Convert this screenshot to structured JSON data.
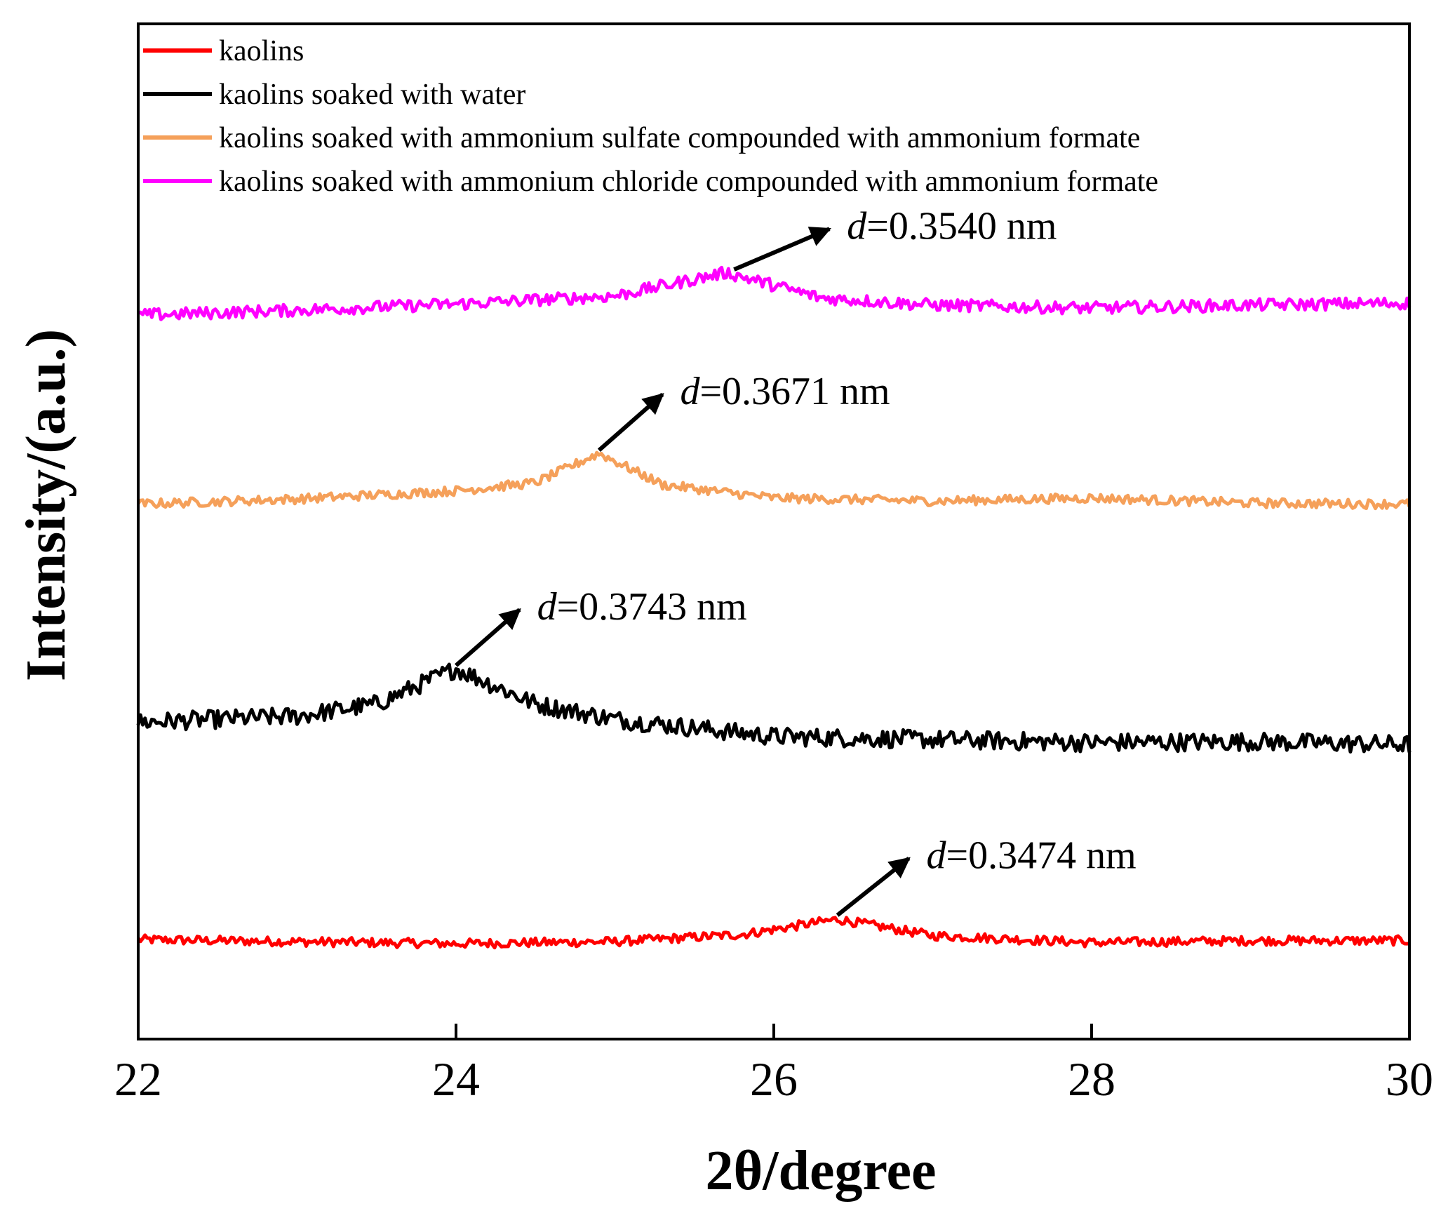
{
  "chart_data": {
    "type": "line",
    "title": "",
    "xlabel": "2θ/degree",
    "ylabel": "Intensity/(a.u.)",
    "xlim": [
      22,
      30
    ],
    "ylim": [
      0,
      100
    ],
    "x_ticks": [
      22,
      24,
      26,
      28,
      30
    ],
    "x_tick_labels": [
      "22",
      "24",
      "26",
      "28",
      "30"
    ],
    "y_ticks_labeled": false,
    "grid": false,
    "legend_position": "top-left",
    "series": [
      {
        "name": "kaolins",
        "color": "#ff0000",
        "baseline": 9.5,
        "noise": 0.45,
        "peaks": [
          {
            "center": 26.4,
            "height": 2.3,
            "width": 0.45
          }
        ],
        "points": [
          [
            22,
            9.8
          ],
          [
            23,
            9.6
          ],
          [
            24,
            9.4
          ],
          [
            25,
            9.6
          ],
          [
            25.8,
            10.3
          ],
          [
            26.4,
            11.8
          ],
          [
            27,
            10.2
          ],
          [
            28,
            9.5
          ],
          [
            29,
            9.7
          ],
          [
            30,
            9.7
          ]
        ]
      },
      {
        "name": "kaolins soaked with water",
        "color": "#000000",
        "baseline": 29.5,
        "noise": 0.9,
        "peaks": [
          {
            "center": 24.0,
            "height": 5.2,
            "width": 0.9
          }
        ],
        "points": [
          [
            22,
            31.2
          ],
          [
            23,
            31.8
          ],
          [
            23.5,
            33.0
          ],
          [
            24.0,
            36.5
          ],
          [
            24.5,
            33.0
          ],
          [
            25,
            31.5
          ],
          [
            26,
            29.8
          ],
          [
            27,
            29.5
          ],
          [
            28,
            29.2
          ],
          [
            29,
            29.3
          ],
          [
            30,
            29.0
          ]
        ]
      },
      {
        "name": "kaolins soaked with ammonium sulfate compounded with ammonium formate",
        "color": "#f5a05a",
        "baseline": 53.0,
        "noise": 0.45,
        "peaks": [
          {
            "center": 24.9,
            "height": 5.0,
            "width": 0.45
          }
        ],
        "points": [
          [
            22,
            52.7
          ],
          [
            23,
            53.2
          ],
          [
            24,
            54.0
          ],
          [
            24.5,
            54.8
          ],
          [
            24.9,
            57.7
          ],
          [
            25.3,
            54.6
          ],
          [
            26,
            53.3
          ],
          [
            27,
            53.0
          ],
          [
            28,
            53.3
          ],
          [
            29,
            52.8
          ],
          [
            30,
            52.7
          ]
        ]
      },
      {
        "name": "kaolins soaked with ammonium chloride compounded with ammonium formate",
        "color": "#ff00ff",
        "baseline": 71.5,
        "noise": 0.6,
        "peaks": [
          {
            "center": 25.7,
            "height": 4.0,
            "width": 0.55
          }
        ],
        "points": [
          [
            22,
            71.3
          ],
          [
            23,
            71.8
          ],
          [
            24,
            72.4
          ],
          [
            25,
            73.2
          ],
          [
            25.7,
            75.5
          ],
          [
            26.3,
            73.0
          ],
          [
            27,
            72.3
          ],
          [
            28,
            72.0
          ],
          [
            29,
            72.3
          ],
          [
            30,
            72.5
          ]
        ]
      }
    ],
    "annotations": [
      {
        "italic": "d",
        "text": "=0.3540 nm",
        "arrow_from": [
          25.75,
          75.8
        ],
        "arrow_to": [
          26.35,
          79.8
        ]
      },
      {
        "italic": "d",
        "text": "=0.3671 nm",
        "arrow_from": [
          24.9,
          58.0
        ],
        "arrow_to": [
          25.3,
          63.5
        ]
      },
      {
        "italic": "d",
        "text": "=0.3743 nm",
        "arrow_from": [
          24.0,
          36.8
        ],
        "arrow_to": [
          24.4,
          42.3
        ]
      },
      {
        "italic": "d",
        "text": "=0.3474 nm",
        "arrow_from": [
          26.4,
          12.2
        ],
        "arrow_to": [
          26.85,
          17.8
        ]
      }
    ]
  }
}
